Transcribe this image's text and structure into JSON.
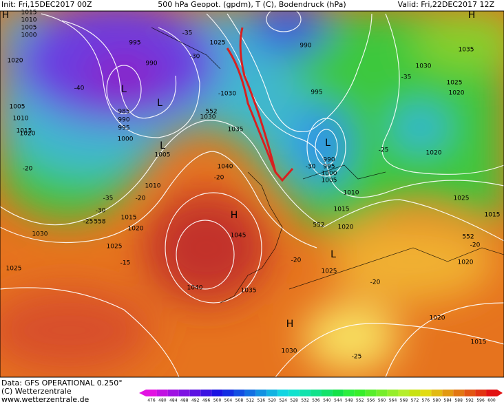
{
  "header": {
    "init": "Init: Fri,15DEC2017 00Z",
    "product": "500 hPa Geopot. (gpdm), T (C), Bodendruck (hPa)",
    "valid": "Valid: Fri,22DEC2017 12Z"
  },
  "footer": {
    "data": "Data: GFS OPERATIONAL 0.250°",
    "copyright": "(C) Wetterzentrale",
    "url": "www.wetterzentrale.de"
  },
  "map_labels": [
    "H",
    "1015",
    "1010",
    "1005",
    "1000",
    "995",
    "990",
    "1020",
    "-40",
    "1005",
    "1010",
    "1015",
    "1020",
    "L",
    "L",
    "985",
    "990",
    "995",
    "1000",
    "L",
    "1005",
    "-35",
    "-30",
    "1025",
    "-1030",
    "552",
    "1030",
    "1035",
    "1040",
    "-20",
    "H",
    "1045",
    "1040",
    "1035",
    "1030",
    "H",
    "-25",
    "990",
    "995",
    "L",
    "990",
    "995",
    "1000",
    "1005",
    "-30",
    "1010",
    "1015",
    "1020",
    "552",
    "L",
    "1025",
    "-20",
    "-20",
    "1020",
    "1015",
    "1020",
    "552",
    "-20",
    "1015",
    "1025",
    "1020",
    "-25",
    "1030",
    "-35",
    "1025",
    "1020",
    "H",
    "1035",
    "1010",
    "-20",
    "-35",
    "-30",
    "-25",
    "558",
    "1015",
    "1020",
    "1025",
    "-15",
    "1030",
    "-20",
    "1025"
  ],
  "scale": {
    "ticks": [
      476,
      480,
      484,
      488,
      492,
      496,
      500,
      504,
      508,
      512,
      516,
      520,
      524,
      528,
      532,
      536,
      540,
      544,
      548,
      552,
      556,
      560,
      564,
      568,
      572,
      576,
      580,
      584,
      588,
      592,
      596,
      600
    ]
  }
}
